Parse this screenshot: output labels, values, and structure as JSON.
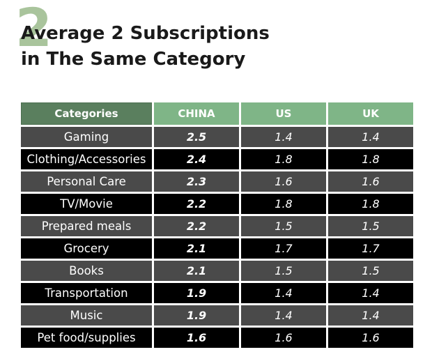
{
  "heading": {
    "number": "2",
    "line1": "Average 2 Subscriptions",
    "line2": "in The Same Category"
  },
  "colors": {
    "header_category": "#5a7f5e",
    "header_country": "#7fb587",
    "row_dark": "#4a4a4a",
    "row_black": "#000000",
    "number_accent": "#a9c49c"
  },
  "chart_data": {
    "type": "table",
    "columns": [
      "Categories",
      "CHINA",
      "US",
      "UK"
    ],
    "rows": [
      {
        "category": "Gaming",
        "china": "2.5",
        "us": "1.4",
        "uk": "1.4"
      },
      {
        "category": "Clothing/Accessories",
        "china": "2.4",
        "us": "1.8",
        "uk": "1.8"
      },
      {
        "category": "Personal Care",
        "china": "2.3",
        "us": "1.6",
        "uk": "1.6"
      },
      {
        "category": "TV/Movie",
        "china": "2.2",
        "us": "1.8",
        "uk": "1.8"
      },
      {
        "category": "Prepared meals",
        "china": "2.2",
        "us": "1.5",
        "uk": "1.5"
      },
      {
        "category": "Grocery",
        "china": "2.1",
        "us": "1.7",
        "uk": "1.7"
      },
      {
        "category": "Books",
        "china": "2.1",
        "us": "1.5",
        "uk": "1.5"
      },
      {
        "category": "Transportation",
        "china": "1.9",
        "us": "1.4",
        "uk": "1.4"
      },
      {
        "category": "Music",
        "china": "1.9",
        "us": "1.4",
        "uk": "1.4"
      },
      {
        "category": "Pet food/supplies",
        "china": "1.6",
        "us": "1.6",
        "uk": "1.6"
      }
    ]
  }
}
